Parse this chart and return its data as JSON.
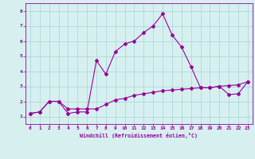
{
  "xlabel": "Windchill (Refroidissement éolien,°C)",
  "ylabel": "",
  "bg_color": "#d6f0f0",
  "grid_color": "#b0d8d8",
  "line_color": "#990099",
  "xlim": [
    -0.5,
    23.5
  ],
  "ylim": [
    0.5,
    8.5
  ],
  "xticks": [
    0,
    1,
    2,
    3,
    4,
    5,
    6,
    7,
    8,
    9,
    10,
    11,
    12,
    13,
    14,
    15,
    16,
    17,
    18,
    19,
    20,
    21,
    22,
    23
  ],
  "yticks": [
    1,
    2,
    3,
    4,
    5,
    6,
    7,
    8
  ],
  "line1_x": [
    0,
    1,
    2,
    3,
    4,
    5,
    6,
    7,
    8,
    9,
    10,
    11,
    12,
    13,
    14,
    15,
    16,
    17,
    18,
    19,
    20,
    21,
    22,
    23
  ],
  "line1_y": [
    1.2,
    1.3,
    2.0,
    2.0,
    1.2,
    1.3,
    1.3,
    4.7,
    3.8,
    5.3,
    5.8,
    6.0,
    6.55,
    7.0,
    7.8,
    6.4,
    5.6,
    4.3,
    2.9,
    2.9,
    3.0,
    2.45,
    2.5,
    3.3
  ],
  "line2_x": [
    0,
    1,
    2,
    3,
    4,
    5,
    6,
    7,
    8,
    9,
    10,
    11,
    12,
    13,
    14,
    15,
    16,
    17,
    18,
    19,
    20,
    21,
    22,
    23
  ],
  "line2_y": [
    1.2,
    1.3,
    2.0,
    2.0,
    1.5,
    1.5,
    1.5,
    1.5,
    1.8,
    2.1,
    2.2,
    2.4,
    2.5,
    2.6,
    2.7,
    2.75,
    2.8,
    2.85,
    2.9,
    2.9,
    3.0,
    3.05,
    3.1,
    3.3
  ]
}
